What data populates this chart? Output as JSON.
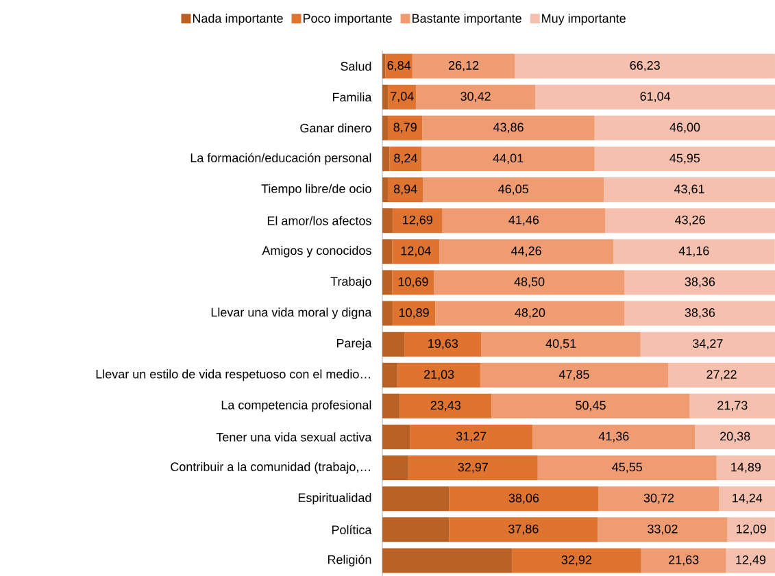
{
  "chart_data": {
    "type": "bar",
    "orientation": "horizontal",
    "stacked": true,
    "legend": "top",
    "xlim": [
      0,
      100
    ],
    "categories": [
      "Salud",
      "Familia",
      "Ganar dinero",
      "La formación/educación personal",
      "Tiempo libre/de ocio",
      "El amor/los afectos",
      "Amigos y conocidos",
      "Trabajo",
      "Llevar una vida moral y digna",
      "Pareja",
      "Llevar un estilo de vida respetuoso con el medio…",
      "La competencia profesional",
      "Tener una vida sexual activa",
      "Contribuir a la comunidad (trabajo,…",
      "Espiritualidad",
      "Política",
      "Religión"
    ],
    "series": [
      {
        "name": "Nada importante",
        "color": "#ba6125",
        "values": [
          0.8,
          1.5,
          1.4,
          1.8,
          1.4,
          2.6,
          2.5,
          2.5,
          2.6,
          5.6,
          3.9,
          4.4,
          7.0,
          6.6,
          17.0,
          17.0,
          33.0
        ]
      },
      {
        "name": "Poco importante",
        "color": "#de7430",
        "values": [
          6.84,
          7.04,
          8.79,
          8.24,
          8.94,
          12.69,
          12.04,
          10.69,
          10.89,
          19.63,
          21.03,
          23.43,
          31.27,
          32.97,
          38.06,
          37.86,
          32.92
        ],
        "value_labels": [
          "6,84",
          "7,04",
          "8,79",
          "8,24",
          "8,94",
          "12,69",
          "12,04",
          "10,69",
          "10,89",
          "19,63",
          "21,03",
          "23,43",
          "31,27",
          "32,97",
          "38,06",
          "37,86",
          "32,92"
        ]
      },
      {
        "name": "Bastante importante",
        "color": "#ef9c72",
        "values": [
          26.12,
          30.42,
          43.86,
          44.01,
          46.05,
          41.46,
          44.26,
          48.5,
          48.2,
          40.51,
          47.85,
          50.45,
          41.36,
          45.55,
          30.72,
          33.02,
          21.63
        ],
        "value_labels": [
          "26,12",
          "30,42",
          "43,86",
          "44,01",
          "46,05",
          "41,46",
          "44,26",
          "48,50",
          "48,20",
          "40,51",
          "47,85",
          "50,45",
          "41,36",
          "45,55",
          "30,72",
          "33,02",
          "21,63"
        ]
      },
      {
        "name": "Muy importante",
        "color": "#f5c0ae",
        "values": [
          66.23,
          61.04,
          46.0,
          45.95,
          43.61,
          43.26,
          41.16,
          38.36,
          38.36,
          34.27,
          27.22,
          21.73,
          20.38,
          14.89,
          14.24,
          12.09,
          12.49
        ],
        "value_labels": [
          "66,23",
          "61,04",
          "46,00",
          "45,95",
          "43,61",
          "43,26",
          "41,16",
          "38,36",
          "38,36",
          "34,27",
          "27,22",
          "21,73",
          "20,38",
          "14,89",
          "14,24",
          "12,09",
          "12,49"
        ]
      }
    ]
  }
}
